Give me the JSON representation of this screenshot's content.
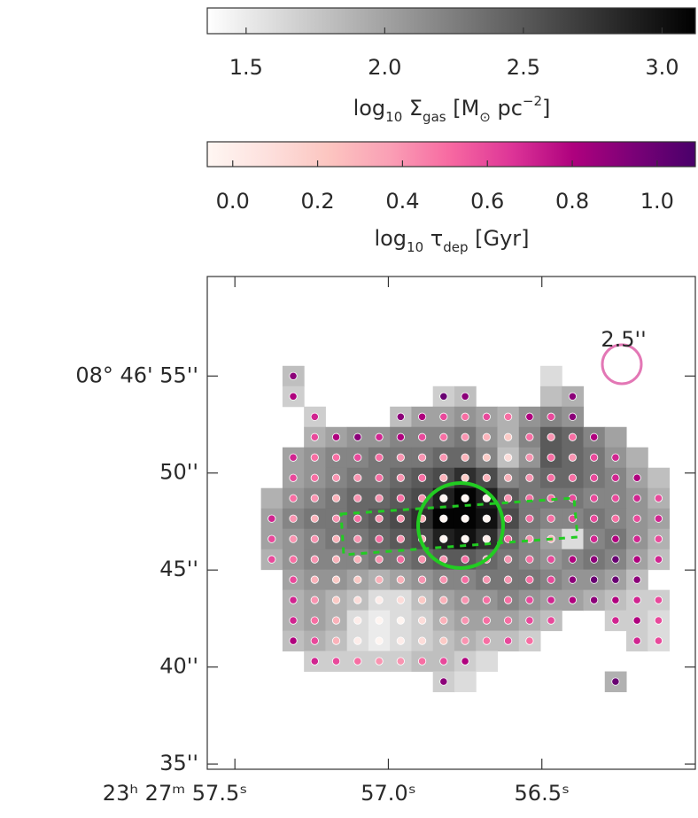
{
  "chart_data": {
    "type": "map",
    "colorbars": [
      {
        "label_parts": [
          "log",
          "10",
          " Σ",
          "gas",
          " [M",
          "⊙",
          " pc",
          "−2",
          "]"
        ],
        "lim": [
          1.36,
          3.12
        ],
        "ticks": [
          1.5,
          {
            "value": 2,
            "label": "2.0"
          },
          2.5,
          {
            "value": 3,
            "label": "3.0"
          }
        ],
        "colors": [
          "#ffffff",
          "#000000"
        ]
      },
      {
        "label_parts": [
          "log",
          "10",
          " τ",
          "dep",
          " [Gyr]"
        ],
        "lim": [
          -0.06,
          1.09
        ],
        "ticks": [
          {
            "value": 0,
            "label": "0.0"
          },
          0.2,
          0.4,
          0.6,
          0.8,
          {
            "value": 1,
            "label": "1.0"
          }
        ],
        "colors": [
          "#fff7f3",
          "#fde0dd",
          "#fcc5c0",
          "#fa9fb5",
          "#f768a1",
          "#dd3497",
          "#ae017e",
          "#7a0177",
          "#49006a"
        ]
      }
    ],
    "xlim": [
      57.59,
      56.0
    ],
    "xticks": [
      {
        "value": 57.5,
        "label": "23ʰ 27ᵐ 57.5ˢ"
      },
      {
        "value": 57,
        "label": "57.0ˢ"
      },
      {
        "value": 56.5,
        "label": "56.5ˢ"
      }
    ],
    "ylim": [
      34.73,
      60.13
    ],
    "yticks": [
      {
        "value": 55,
        "label": "08° 46' 55''"
      },
      {
        "value": 50,
        "label": "50''"
      },
      {
        "value": 45,
        "label": "45''"
      },
      {
        "value": 40,
        "label": "40''"
      },
      {
        "value": 35,
        "label": "35''"
      }
    ],
    "beam_label": "2.5''",
    "map": {
      "ra": [
        57.38,
        57.31,
        57.24,
        57.17,
        57.1,
        57.03,
        56.96,
        56.89,
        56.82,
        56.75,
        56.68,
        56.61,
        56.54,
        56.47,
        56.4,
        56.33,
        56.26,
        56.19,
        56.12
      ],
      "dec": [
        55.0,
        53.95,
        52.9,
        51.85,
        50.8,
        49.75,
        48.7,
        47.65,
        46.6,
        45.55,
        44.5,
        43.45,
        42.4,
        41.35,
        40.3,
        39.25
      ],
      "gas": [
        [
          null,
          1.8,
          null,
          null,
          null,
          null,
          null,
          null,
          null,
          null,
          null,
          null,
          null,
          1.6,
          null,
          null,
          null,
          null,
          null
        ],
        [
          null,
          1.7,
          null,
          null,
          null,
          null,
          null,
          null,
          1.7,
          1.8,
          null,
          null,
          null,
          1.8,
          1.9,
          null,
          null,
          null,
          null
        ],
        [
          null,
          null,
          1.7,
          null,
          null,
          null,
          1.8,
          2.0,
          2.0,
          2.1,
          2.0,
          1.9,
          2.1,
          2.2,
          2.1,
          null,
          null,
          null,
          null
        ],
        [
          null,
          null,
          1.9,
          2.0,
          2.1,
          2.1,
          2.2,
          2.2,
          2.2,
          2.3,
          2.1,
          1.9,
          2.2,
          2.5,
          2.4,
          2.2,
          2.0,
          null,
          null
        ],
        [
          null,
          2.0,
          2.1,
          2.2,
          2.2,
          2.3,
          2.3,
          2.3,
          2.4,
          2.4,
          2.2,
          1.8,
          2.1,
          2.5,
          2.4,
          2.3,
          2.1,
          1.9,
          null
        ],
        [
          null,
          2.0,
          2.1,
          2.2,
          2.3,
          2.3,
          2.4,
          2.5,
          2.6,
          2.8,
          2.6,
          2.2,
          2.3,
          2.4,
          2.4,
          2.3,
          2.2,
          2.0,
          1.8
        ],
        [
          1.9,
          2.1,
          2.2,
          2.3,
          2.4,
          2.4,
          2.5,
          2.6,
          2.9,
          3.1,
          2.9,
          2.5,
          2.3,
          2.3,
          2.3,
          2.2,
          2.2,
          2.1,
          1.9
        ],
        [
          2.0,
          2.2,
          2.3,
          2.3,
          2.4,
          2.5,
          2.6,
          2.8,
          3.1,
          3.1,
          3.0,
          2.6,
          2.3,
          2.2,
          2.2,
          2.3,
          2.2,
          2.1,
          2.0
        ],
        [
          2.0,
          2.1,
          2.2,
          2.3,
          2.3,
          2.4,
          2.5,
          2.6,
          2.9,
          3.0,
          2.8,
          2.4,
          2.2,
          2.0,
          1.6,
          2.2,
          2.3,
          2.1,
          1.9
        ],
        [
          1.9,
          2.1,
          2.2,
          2.2,
          2.2,
          2.3,
          2.3,
          2.4,
          2.5,
          2.5,
          2.4,
          2.3,
          2.2,
          2.1,
          2.2,
          2.3,
          2.2,
          2.0,
          1.8
        ],
        [
          null,
          2.0,
          2.1,
          2.1,
          2.0,
          1.9,
          2.0,
          2.1,
          2.2,
          2.2,
          2.3,
          2.3,
          2.3,
          2.2,
          2.1,
          2.1,
          2.0,
          1.8,
          null
        ],
        [
          null,
          1.9,
          2.0,
          1.9,
          1.8,
          1.6,
          1.6,
          1.8,
          2.0,
          2.1,
          2.1,
          2.2,
          2.1,
          2.0,
          2.0,
          1.9,
          1.8,
          1.7,
          1.7
        ],
        [
          null,
          1.9,
          2.0,
          1.9,
          1.6,
          1.5,
          1.6,
          1.7,
          1.9,
          2.0,
          2.0,
          2.0,
          1.9,
          1.8,
          null,
          null,
          1.7,
          1.7,
          1.6
        ],
        [
          null,
          1.8,
          1.9,
          1.8,
          1.6,
          1.5,
          1.6,
          1.7,
          1.8,
          1.9,
          1.8,
          1.8,
          1.7,
          null,
          null,
          null,
          null,
          1.7,
          1.6
        ],
        [
          null,
          null,
          1.7,
          1.7,
          1.7,
          1.7,
          1.7,
          1.8,
          1.8,
          1.7,
          1.6,
          null,
          null,
          null,
          null,
          null,
          null,
          null,
          null
        ],
        [
          null,
          null,
          null,
          null,
          null,
          null,
          null,
          null,
          1.7,
          1.6,
          null,
          null,
          null,
          null,
          null,
          null,
          1.9,
          null,
          null
        ]
      ],
      "tau": [
        [
          null,
          0.9,
          null,
          null,
          null,
          null,
          null,
          null,
          null,
          null,
          null,
          null,
          null,
          null,
          null,
          null,
          null,
          null,
          null
        ],
        [
          null,
          0.8,
          null,
          null,
          null,
          null,
          null,
          null,
          1.0,
          0.9,
          null,
          null,
          null,
          null,
          0.9,
          null,
          null,
          null,
          null
        ],
        [
          null,
          null,
          0.7,
          null,
          null,
          null,
          0.9,
          0.8,
          0.6,
          0.5,
          0.6,
          0.5,
          0.8,
          0.6,
          0.9,
          null,
          null,
          null,
          null
        ],
        [
          null,
          null,
          0.6,
          0.8,
          0.9,
          0.7,
          0.8,
          0.6,
          0.5,
          0.4,
          0.3,
          0.2,
          0.5,
          0.4,
          0.5,
          0.8,
          null,
          null,
          null
        ],
        [
          null,
          0.7,
          0.5,
          0.5,
          0.6,
          0.5,
          0.4,
          0.4,
          0.4,
          0.3,
          0.2,
          0.1,
          0.4,
          0.5,
          0.4,
          0.6,
          0.7,
          null,
          null
        ],
        [
          null,
          0.6,
          0.5,
          0.4,
          0.4,
          0.5,
          0.4,
          0.5,
          0.3,
          0.2,
          0.3,
          0.3,
          0.4,
          0.5,
          0.5,
          0.6,
          0.7,
          0.8,
          null
        ],
        [
          null,
          0.5,
          0.4,
          0.3,
          0.4,
          0.4,
          0.5,
          0.4,
          -0.05,
          -0.05,
          0.0,
          0.4,
          0.5,
          0.5,
          0.6,
          0.6,
          0.6,
          0.7,
          0.6
        ],
        [
          0.7,
          0.4,
          0.3,
          0.4,
          0.5,
          0.4,
          0.4,
          0.3,
          -0.05,
          -0.05,
          -0.05,
          0.5,
          0.5,
          0.5,
          0.6,
          0.6,
          0.5,
          0.6,
          0.7
        ],
        [
          0.6,
          0.4,
          0.4,
          0.3,
          0.4,
          0.5,
          0.4,
          0.3,
          -0.05,
          -0.05,
          0.0,
          0.5,
          0.4,
          0.3,
          null,
          0.7,
          0.8,
          0.7,
          0.6
        ],
        [
          0.6,
          0.5,
          0.4,
          0.3,
          0.3,
          0.4,
          0.5,
          0.4,
          0.4,
          0.5,
          0.4,
          0.4,
          0.5,
          0.6,
          0.8,
          0.9,
          1.0,
          0.8,
          0.7
        ],
        [
          null,
          0.6,
          0.3,
          0.2,
          0.2,
          0.3,
          0.3,
          0.4,
          0.4,
          0.5,
          0.4,
          0.4,
          0.5,
          0.6,
          0.9,
          1.0,
          1.0,
          0.9,
          null
        ],
        [
          null,
          0.7,
          0.4,
          0.2,
          0.1,
          0.0,
          0.1,
          0.2,
          0.3,
          0.4,
          0.5,
          0.5,
          0.6,
          0.7,
          0.8,
          0.9,
          0.8,
          0.7,
          0.6
        ],
        [
          null,
          0.7,
          0.5,
          0.3,
          0.0,
          -0.05,
          -0.05,
          0.1,
          0.3,
          0.4,
          0.5,
          0.5,
          0.6,
          0.6,
          null,
          null,
          0.7,
          0.8,
          0.6
        ],
        [
          null,
          0.8,
          0.6,
          0.3,
          0.0,
          -0.05,
          0.0,
          0.1,
          0.2,
          0.4,
          0.5,
          0.6,
          0.5,
          null,
          null,
          null,
          null,
          0.7,
          0.6
        ],
        [
          null,
          null,
          0.7,
          0.6,
          0.5,
          0.4,
          0.4,
          0.5,
          0.6,
          0.8,
          null,
          null,
          null,
          null,
          null,
          null,
          null,
          null,
          null
        ],
        [
          null,
          null,
          null,
          null,
          null,
          null,
          null,
          null,
          0.9,
          null,
          null,
          null,
          null,
          null,
          null,
          null,
          1.0,
          null,
          null
        ]
      ]
    }
  }
}
